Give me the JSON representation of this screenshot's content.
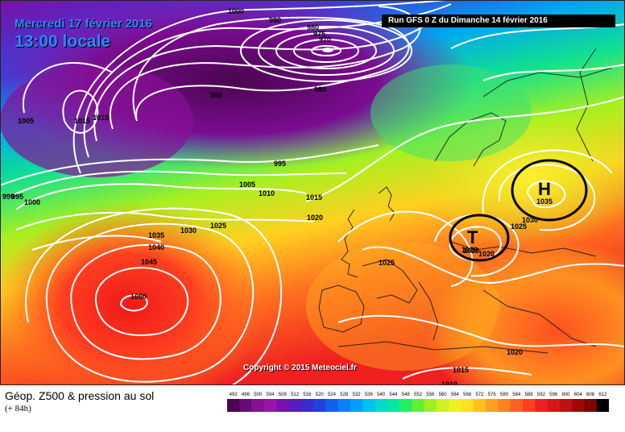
{
  "header": {
    "date": "Mercredi 17 février 2016",
    "time": "13:00 locale",
    "run": "Run GFS 0 Z du Dimanche 14 février 2016"
  },
  "footer": {
    "title": "Géop. Z500 & pression au sol",
    "lead": "(+ 84h)",
    "copyright": "Copyright © 2015 Meteociel.fr"
  },
  "scale": {
    "values": [
      "492",
      "496",
      "500",
      "504",
      "508",
      "512",
      "516",
      "520",
      "524",
      "528",
      "532",
      "536",
      "540",
      "544",
      "548",
      "552",
      "556",
      "560",
      "564",
      "568",
      "572",
      "576",
      "580",
      "584",
      "588",
      "592",
      "596",
      "600",
      "604",
      "608",
      "612"
    ],
    "colors": [
      "#4a0550",
      "#6a0a78",
      "#861197",
      "#9a14a8",
      "#7a10b0",
      "#5a1cc0",
      "#3a2ad0",
      "#2040e0",
      "#1060f0",
      "#0a80ff",
      "#00a0ff",
      "#00c0f0",
      "#00d8d0",
      "#00e8a0",
      "#20f060",
      "#60f030",
      "#a0f020",
      "#d0f020",
      "#f0f020",
      "#ffe020",
      "#ffc020",
      "#ffa020",
      "#ff8020",
      "#ff6020",
      "#ff4020",
      "#f02020",
      "#d81818",
      "#c01010",
      "#a00808",
      "#800404",
      "#000000"
    ]
  },
  "pressure_centers": [
    {
      "type": "high",
      "letter": "H",
      "value": "1035"
    },
    {
      "type": "low",
      "letter": "T",
      "value": "1020"
    }
  ],
  "isobar_labels": [
    "1000",
    "990",
    "980",
    "975",
    "970",
    "985",
    "980",
    "1005",
    "1015",
    "1010",
    "995",
    "1005",
    "1010",
    "1015",
    "1020",
    "990",
    "995",
    "1000",
    "1025",
    "1030",
    "1035",
    "1040",
    "1045",
    "1050",
    "1025",
    "1020",
    "1030",
    "1025",
    "1020",
    "1020",
    "1015",
    "1010"
  ]
}
